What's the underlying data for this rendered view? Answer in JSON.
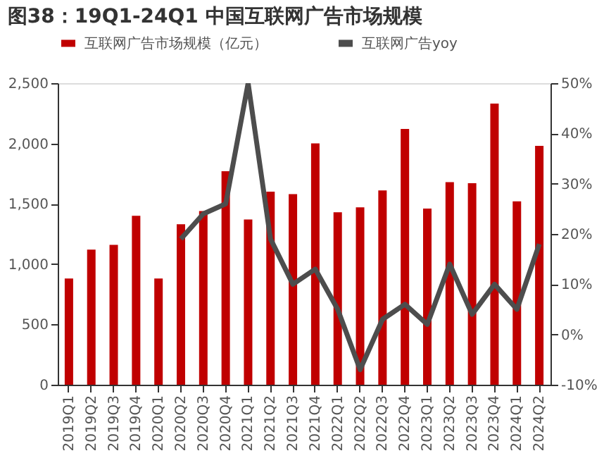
{
  "chart_data": {
    "type": "bar",
    "title": "图38：19Q1-24Q1 中国互联网广告市场规模",
    "categories": [
      "2019Q1",
      "2019Q2",
      "2019Q3",
      "2019Q4",
      "2020Q1",
      "2020Q2",
      "2020Q3",
      "2020Q4",
      "2021Q1",
      "2021Q2",
      "2021Q3",
      "2021Q4",
      "2022Q1",
      "2022Q2",
      "2022Q3",
      "2022Q4",
      "2023Q1",
      "2023Q2",
      "2023Q3",
      "2023Q4",
      "2024Q1",
      "2024Q2"
    ],
    "series": [
      {
        "name": "互联网广告市场规模（亿元）",
        "color": "#c00000",
        "values": [
          880,
          1120,
          1160,
          1400,
          880,
          1330,
          1440,
          1770,
          1370,
          1600,
          1580,
          2000,
          1430,
          1470,
          1610,
          2120,
          1460,
          1680,
          1670,
          2330,
          1520,
          1980
        ]
      },
      {
        "name": "互联网广告yoy",
        "type": "line",
        "axis": "y2",
        "color": "#4d4d4d",
        "values": [
          null,
          null,
          null,
          null,
          null,
          19,
          24,
          26,
          50,
          19,
          10,
          13,
          5,
          -7,
          3,
          6,
          2,
          14,
          4,
          10,
          5,
          18
        ]
      }
    ],
    "ylim": [
      0,
      2500
    ],
    "yticks": [
      0,
      {
        "value": 500,
        "label": "500"
      },
      {
        "value": 1000,
        "label": "1,000"
      },
      {
        "value": 1500,
        "label": "1,500"
      },
      {
        "value": 2000,
        "label": "2,000"
      },
      {
        "value": 2500,
        "label": "2,500"
      }
    ],
    "y2lim": [
      -10,
      50
    ],
    "y2ticks": [
      {
        "value": -10,
        "label": "-10%"
      },
      {
        "value": 0,
        "label": "0%"
      },
      {
        "value": 10,
        "label": "10%"
      },
      {
        "value": 20,
        "label": "20%"
      },
      {
        "value": 30,
        "label": "30%"
      },
      {
        "value": 40,
        "label": "40%"
      },
      {
        "value": 50,
        "label": "50%"
      }
    ],
    "grid": false,
    "legend": "top",
    "marker": "none",
    "line_style": "solid"
  }
}
